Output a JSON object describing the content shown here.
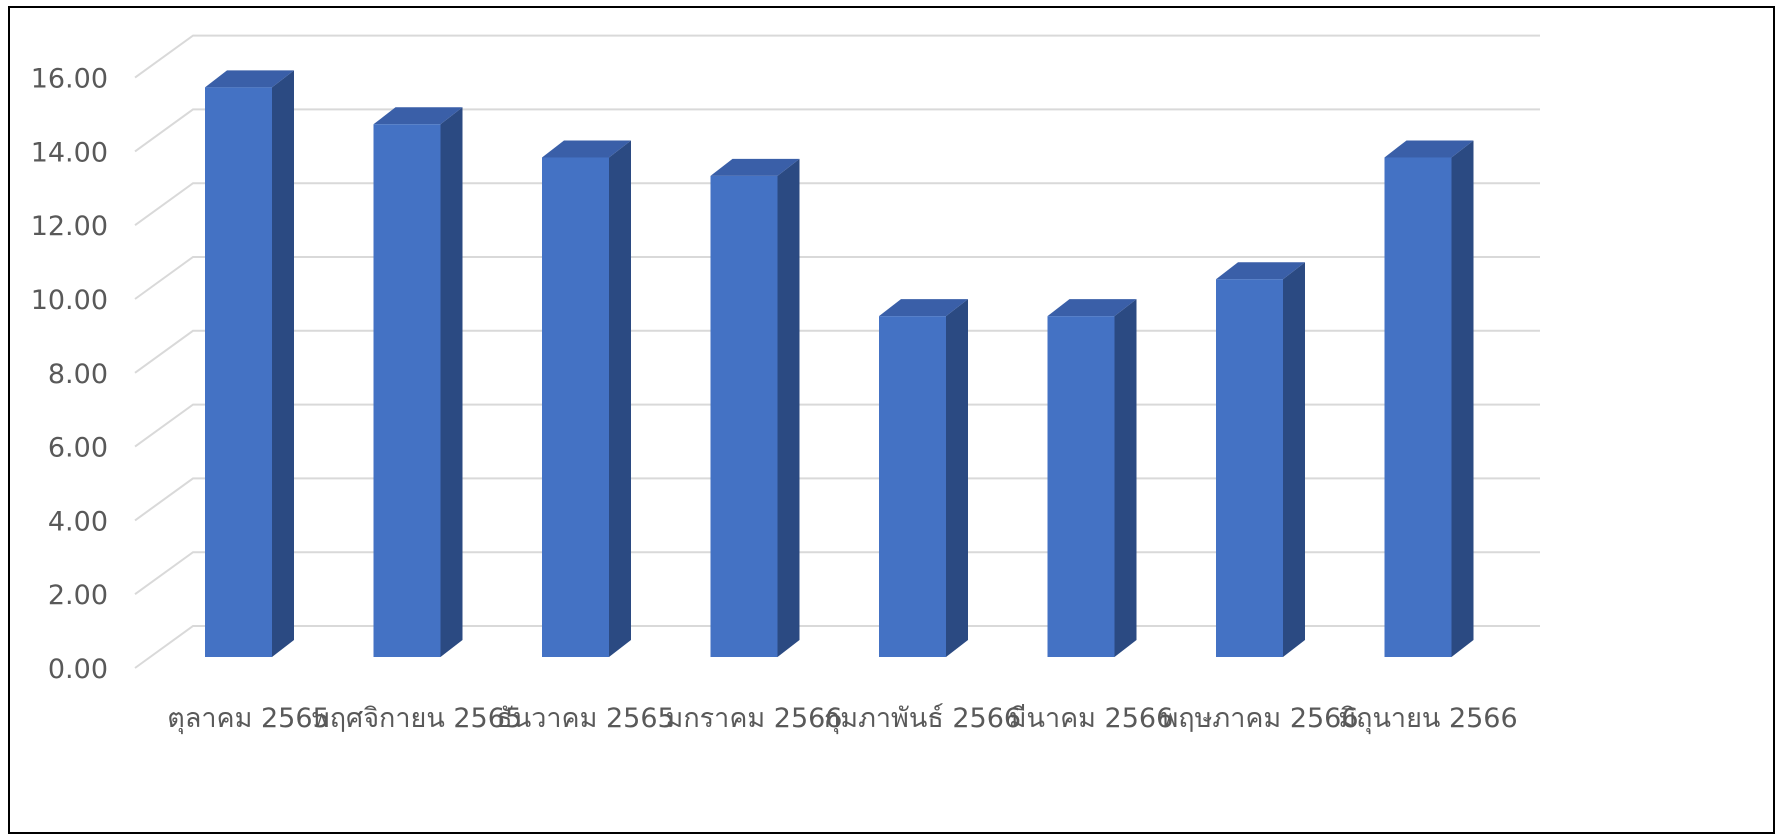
{
  "chart_data": {
    "type": "bar",
    "style": "3d-column",
    "categories": [
      "ตุลาคม 2565",
      "พฤศจิกายน 2565",
      "ธันวาคม 2565",
      "มกราคม 2566",
      "กุมภาพันธ์ 2566",
      "มีนาคม 2566",
      "พฤษภาคม 2566",
      "มิถุนายน 2566"
    ],
    "values": [
      15.6,
      14.6,
      13.7,
      13.2,
      9.4,
      9.4,
      10.4,
      13.7
    ],
    "ylim": [
      0,
      16
    ],
    "yticks": [
      "0.00",
      "2.00",
      "4.00",
      "6.00",
      "8.00",
      "10.00",
      "12.00",
      "14.00",
      "16.00"
    ],
    "ytick_values": [
      0,
      2,
      4,
      6,
      8,
      10,
      12,
      14,
      16
    ],
    "grid": true,
    "legend": "none",
    "colors": {
      "bar_front": "#4472C4",
      "bar_side": "#2B4A82",
      "bar_top": "#3A5FA8",
      "gridline": "#D9D9D9",
      "text": "#595959",
      "frame": "#000000"
    }
  }
}
